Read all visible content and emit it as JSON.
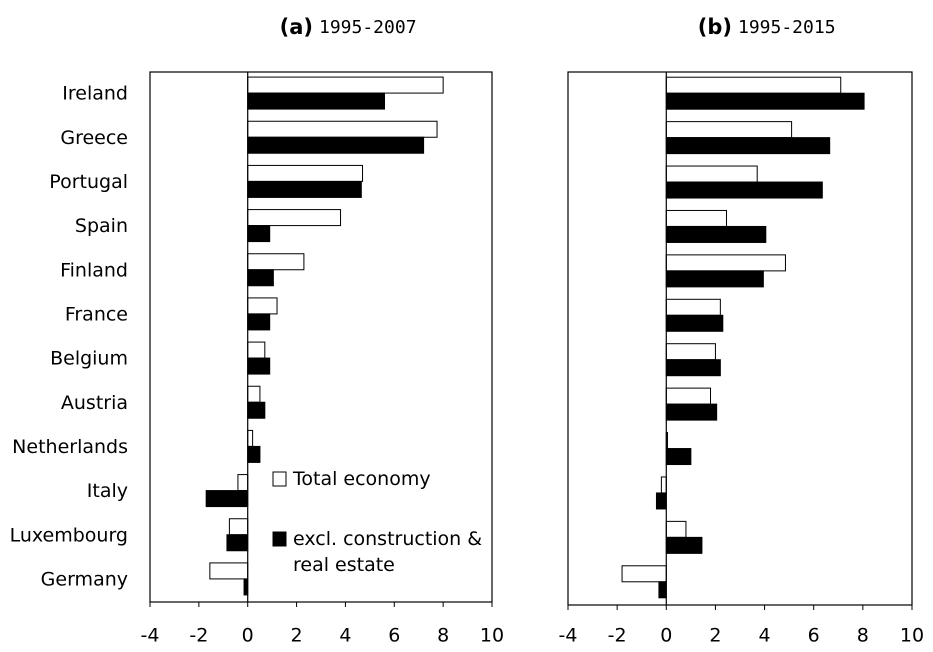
{
  "chart_data": [
    {
      "type": "hbar",
      "panel": "(a)",
      "title": "1995-2007",
      "categories": [
        "Ireland",
        "Greece",
        "Portugal",
        "Spain",
        "Finland",
        "France",
        "Belgium",
        "Austria",
        "Netherlands",
        "Italy",
        "Luxembourg",
        "Germany"
      ],
      "series": [
        {
          "name": "Total economy",
          "color": "#ffffff",
          "values": [
            8.0,
            7.75,
            4.7,
            3.8,
            2.3,
            1.2,
            0.7,
            0.5,
            0.2,
            -0.4,
            -0.75,
            -1.55
          ]
        },
        {
          "name": "excl. construction & real estate",
          "color": "#000000",
          "values": [
            5.6,
            7.2,
            4.65,
            0.9,
            1.05,
            0.9,
            0.9,
            0.7,
            0.5,
            -1.7,
            -0.85,
            -0.15
          ]
        }
      ],
      "xlim": [
        -4,
        10
      ],
      "xticks": [
        -4,
        -2,
        0,
        2,
        4,
        6,
        8,
        10
      ],
      "legend": "lower right"
    },
    {
      "type": "hbar",
      "panel": "(b)",
      "title": "1995-2015",
      "series": [
        {
          "color": "#ffffff",
          "values": [
            7.1,
            5.1,
            3.7,
            2.45,
            4.85,
            2.2,
            2.0,
            1.8,
            0.05,
            -0.2,
            0.8,
            -1.8
          ]
        },
        {
          "color": "#000000",
          "values": [
            8.05,
            6.65,
            6.35,
            4.05,
            3.95,
            2.3,
            2.2,
            2.05,
            1.0,
            -0.4,
            1.45,
            -0.3
          ]
        }
      ],
      "xlim": [
        -4,
        10
      ],
      "xticks": [
        -4,
        -2,
        0,
        2,
        4,
        6,
        8,
        10
      ]
    }
  ]
}
